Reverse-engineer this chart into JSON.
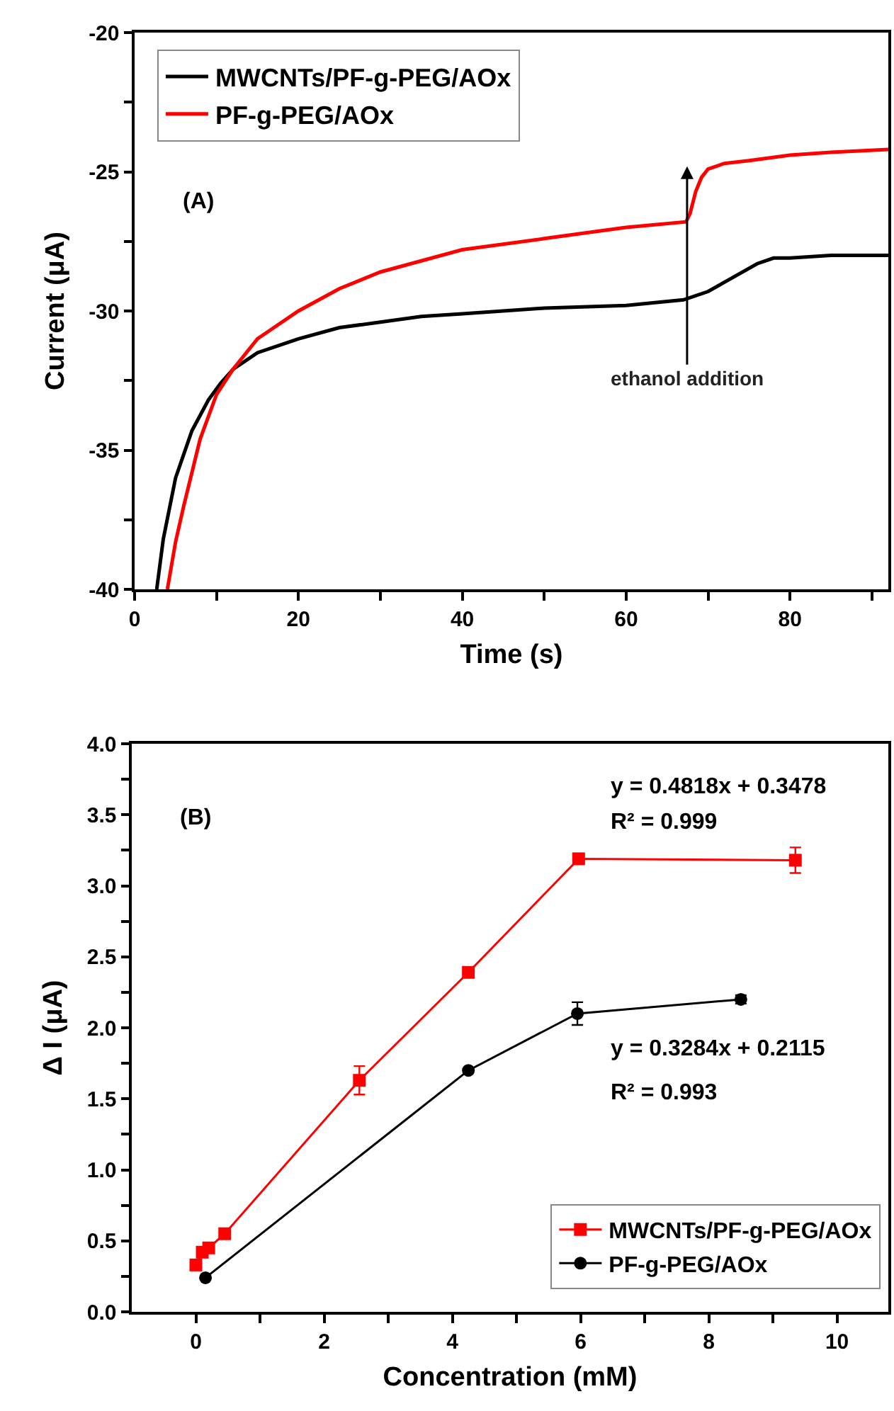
{
  "chart_data": [
    {
      "type": "line",
      "xlabel": "Time (s)",
      "ylabel": "Current (μA)",
      "xlim": [
        0,
        92
      ],
      "ylim": [
        -40,
        -20
      ],
      "xticks": [
        0,
        {
          "value": 10,
          "label": null
        },
        20,
        {
          "value": 30,
          "label": null
        },
        40,
        {
          "value": 50,
          "label": null
        },
        60,
        {
          "value": 70,
          "label": null
        },
        80,
        {
          "value": 90,
          "label": null
        }
      ],
      "yticks": [
        -40,
        {
          "value": -37.5,
          "label": null
        },
        -35,
        {
          "value": -32.5,
          "label": null
        },
        -30,
        {
          "value": -27.5,
          "label": null
        },
        -25,
        {
          "value": -22.5,
          "label": null
        },
        -20
      ],
      "legend": "top left",
      "grid": false,
      "marker": "none",
      "line_style": "solid",
      "annotations": [
        "(A)",
        "ethanol addition"
      ],
      "series": [
        {
          "name": "MWCNTs/PF-g-PEG/AOx",
          "color": "#000000",
          "x": [
            2.7,
            3.5,
            5,
            7,
            9,
            10.5,
            12,
            15,
            20,
            25,
            30,
            35,
            40,
            50,
            60,
            67,
            70,
            73,
            76,
            78,
            80,
            85,
            92
          ],
          "values": [
            -40,
            -38.2,
            -36,
            -34.3,
            -33.2,
            -32.6,
            -32.1,
            -31.5,
            -31,
            -30.6,
            -30.4,
            -30.2,
            -30.1,
            -29.9,
            -29.8,
            -29.6,
            -29.3,
            -28.8,
            -28.3,
            -28.1,
            -28.1,
            -28.0,
            -28.0
          ]
        },
        {
          "name": "PF-g-PEG/AOx",
          "color": "#ff0000",
          "x": [
            4,
            5,
            6,
            8,
            10,
            12,
            15,
            20,
            25,
            30,
            35,
            40,
            50,
            60,
            67.3,
            67.8,
            68.5,
            69.2,
            70,
            72,
            75,
            80,
            85,
            92
          ],
          "values": [
            -40,
            -38.3,
            -37,
            -34.6,
            -33,
            -32.1,
            -31,
            -30,
            -29.2,
            -28.6,
            -28.2,
            -27.8,
            -27.4,
            -27,
            -26.8,
            -26.5,
            -25.7,
            -25.2,
            -24.9,
            -24.7,
            -24.6,
            -24.4,
            -24.3,
            -24.2
          ]
        }
      ]
    },
    {
      "type": "line",
      "xlabel": "Concentration (mM)",
      "ylabel": "Δ I (μA)",
      "xlim": [
        -1,
        10.8
      ],
      "ylim": [
        0,
        4
      ],
      "xticks": [
        0,
        {
          "value": 1,
          "label": null
        },
        2,
        {
          "value": 3,
          "label": null
        },
        4,
        {
          "value": 5,
          "label": null
        },
        6,
        {
          "value": 7,
          "label": null
        },
        8,
        {
          "value": 9,
          "label": null
        },
        10
      ],
      "yticks": [
        {
          "value": 0,
          "label": "0.0"
        },
        {
          "value": 0.25,
          "label": null
        },
        {
          "value": 0.5,
          "label": "0.5"
        },
        {
          "value": 0.75,
          "label": null
        },
        {
          "value": 1,
          "label": "1.0"
        },
        {
          "value": 1.25,
          "label": null
        },
        {
          "value": 1.5,
          "label": "1.5"
        },
        {
          "value": 1.75,
          "label": null
        },
        {
          "value": 2,
          "label": "2.0"
        },
        {
          "value": 2.25,
          "label": null
        },
        {
          "value": 2.5,
          "label": "2.5"
        },
        {
          "value": 2.75,
          "label": null
        },
        {
          "value": 3,
          "label": "3.0"
        },
        {
          "value": 3.25,
          "label": null
        },
        {
          "value": 3.5,
          "label": "3.5"
        },
        {
          "value": 3.75,
          "label": null
        },
        {
          "value": 4,
          "label": "4.0"
        }
      ],
      "legend": "bottom right",
      "grid": false,
      "line_style": "solid",
      "annotations": [
        "(B)",
        "y = 0.4818x + 0.3478",
        "R² = 0.999",
        "y = 0.3284x + 0.2115",
        "R² = 0.993"
      ],
      "series": [
        {
          "name": "MWCNTs/PF-g-PEG/AOx",
          "color": "#ff0000",
          "marker": "square",
          "x": [
            0,
            0.1,
            0.2,
            0.45,
            2.55,
            4.25,
            5.97,
            9.35
          ],
          "values": [
            0.33,
            0.42,
            0.45,
            0.55,
            1.63,
            2.39,
            3.19,
            3.18
          ],
          "errors": [
            null,
            null,
            null,
            null,
            0.1,
            null,
            null,
            0.09
          ]
        },
        {
          "name": "PF-g-PEG/AOx",
          "color": "#000000",
          "marker": "circle",
          "x": [
            0.15,
            4.25,
            5.95,
            8.5
          ],
          "values": [
            0.24,
            1.7,
            2.1,
            2.2
          ],
          "errors": [
            null,
            null,
            0.08,
            0.03
          ]
        }
      ]
    }
  ]
}
